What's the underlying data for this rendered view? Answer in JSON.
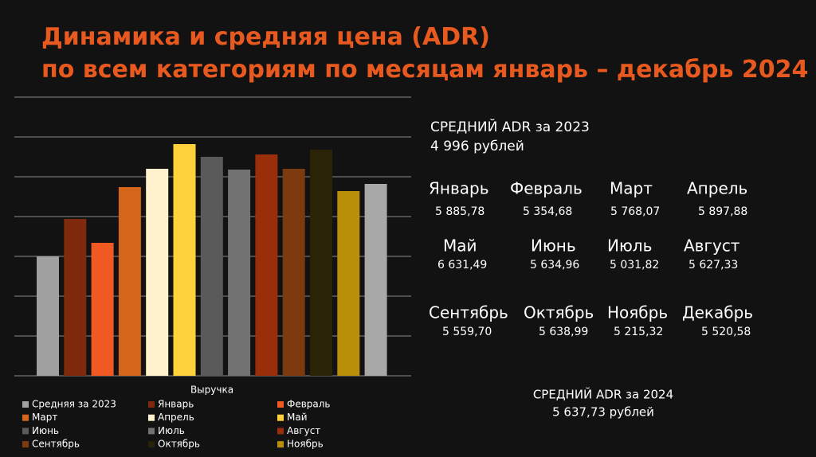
{
  "chart_data": {
    "type": "bar",
    "title": "Динамика и средняя цена (ADR) по всем категориям по месяцам январь – декабрь 2024",
    "x_label": "Выручка",
    "categories": [
      "Средняя за 2023",
      "Январь",
      "Февраль",
      "Март",
      "Апрель",
      "Май",
      "Июнь",
      "Июль",
      "Август",
      "Сентябрь",
      "Октябрь",
      "Ноябрь",
      null
    ],
    "values": [
      3.0,
      3.94,
      3.34,
      4.74,
      5.2,
      5.82,
      5.5,
      5.18,
      5.56,
      5.2,
      5.68,
      4.64,
      4.82
    ],
    "colors": [
      "#a0a0a0",
      "#7f2a0c",
      "#f05a22",
      "#d4651a",
      "#fff2cc",
      "#ffd23c",
      "#5a5a5a",
      "#727272",
      "#9a2e0a",
      "#7d3a0e",
      "#2a2308",
      "#b8900a",
      "#a8a8a8"
    ],
    "ylim": [
      0,
      7
    ],
    "yticks": [
      0,
      1,
      2,
      3,
      4,
      5,
      6,
      7
    ],
    "grid": true
  },
  "panel": {
    "prev_title": "СРЕДНИЙ ADR за 2023",
    "prev_value": "4 996 рублей",
    "months": [
      {
        "name": "Январь",
        "value": "5 885,78"
      },
      {
        "name": "Февраль",
        "value": "5 354,68"
      },
      {
        "name": "Март",
        "value": "5 768,07"
      },
      {
        "name": "Апрель",
        "value": "5 897,88"
      },
      {
        "name": "Май",
        "value": "6 631,49"
      },
      {
        "name": "Июнь",
        "value": "5 634,96"
      },
      {
        "name": "Июль",
        "value": "5 031,82"
      },
      {
        "name": "Август",
        "value": "5 627,33"
      },
      {
        "name": "Сентябрь",
        "value": "5 559,70"
      },
      {
        "name": "Октябрь",
        "value": "5 638,99"
      },
      {
        "name": "Ноябрь",
        "value": "5 215,32"
      },
      {
        "name": "Декабрь",
        "value": "5 520,58"
      }
    ],
    "cur_title": "СРЕДНИЙ ADR за 2024",
    "cur_value": "5 637,73 рублей"
  }
}
